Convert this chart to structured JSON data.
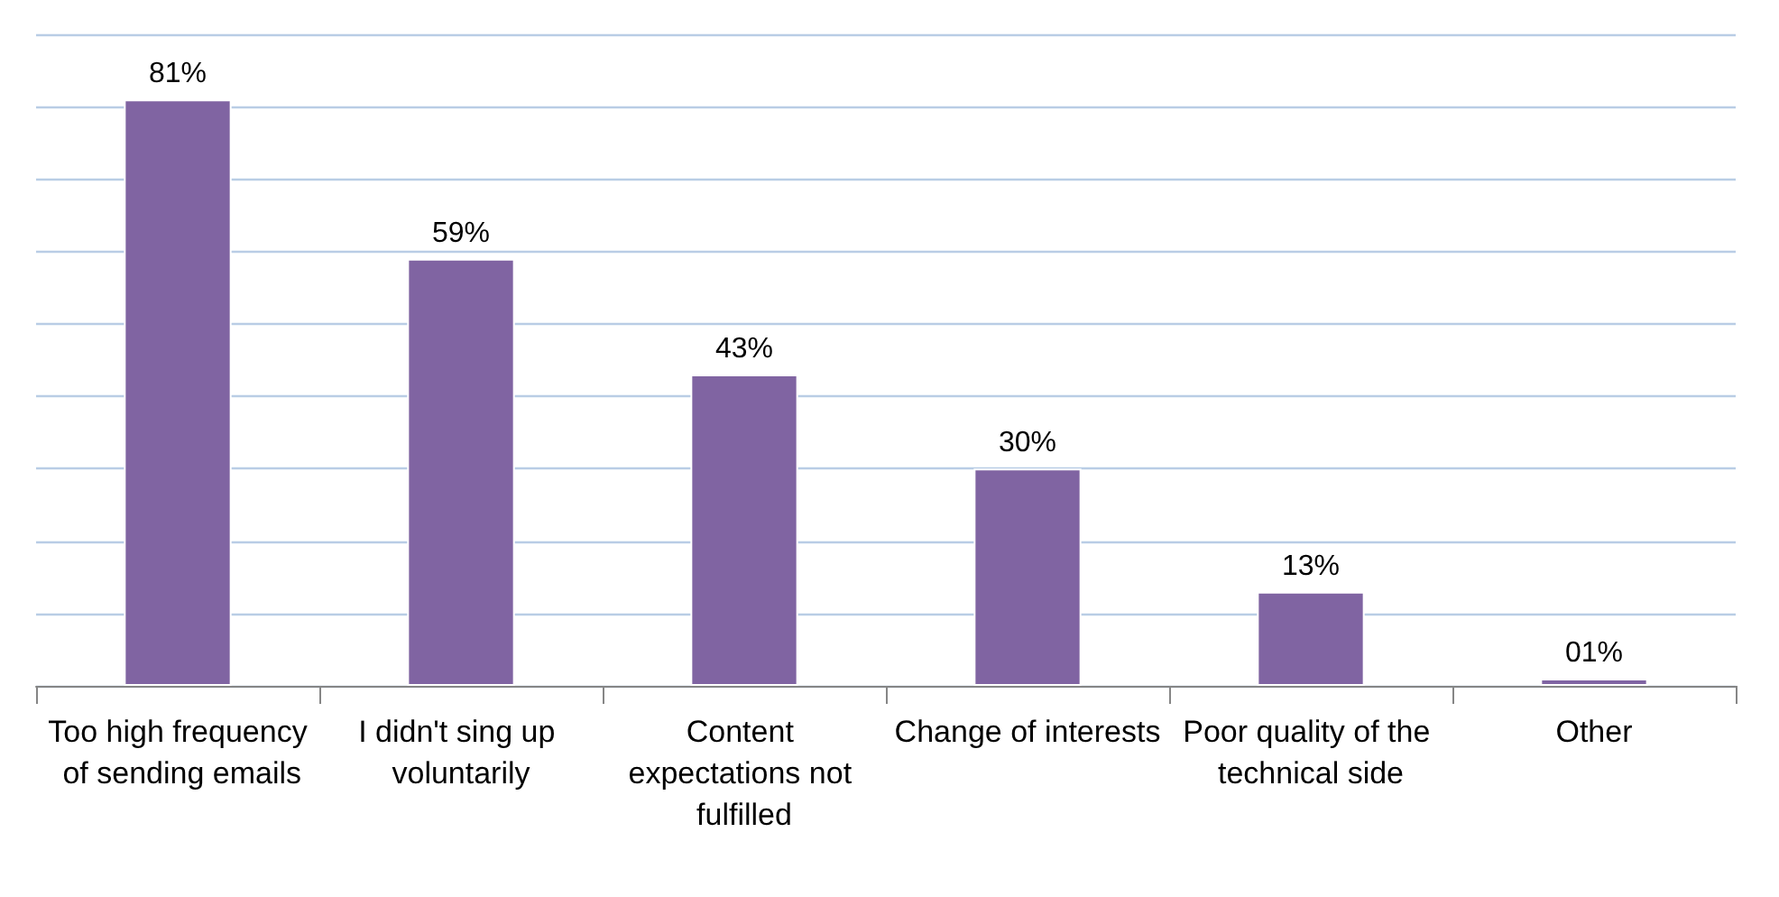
{
  "chart_data": {
    "type": "bar",
    "categories": [
      "Too high frequency of sending emails",
      "I didn't sing up voluntarily",
      "Content expectations not fulfilled",
      "Change of interests",
      "Poor quality of the technical side",
      "Other"
    ],
    "values": [
      81,
      59,
      43,
      30,
      13,
      1
    ],
    "value_labels": [
      "81%",
      "59%",
      "43%",
      "30%",
      "13%",
      "01%"
    ],
    "color": "#8064a2",
    "ylim": [
      0,
      90
    ],
    "yticks": [
      {
        "value": 0,
        "label": null
      },
      {
        "value": 10,
        "label": null
      },
      {
        "value": 20,
        "label": null
      },
      {
        "value": 30,
        "label": null
      },
      {
        "value": 40,
        "label": null
      },
      {
        "value": 50,
        "label": null
      },
      {
        "value": 60,
        "label": null
      },
      {
        "value": 70,
        "label": null
      },
      {
        "value": 80,
        "label": null
      },
      {
        "value": 90,
        "label": null
      }
    ],
    "grid": true,
    "tick_labels": "x"
  }
}
